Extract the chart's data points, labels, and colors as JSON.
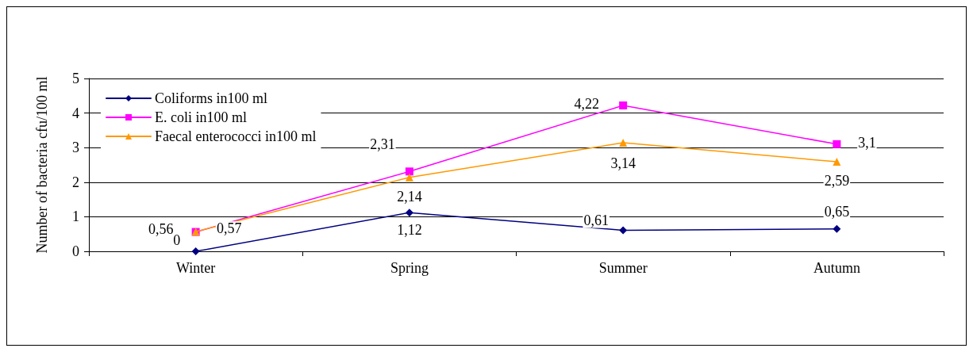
{
  "chart_data": {
    "type": "line",
    "ylabel": "Number of bacteria cfu/100 ml",
    "categories": [
      "Winter",
      "Spring",
      "Summer",
      "Autumn"
    ],
    "series": [
      {
        "name": "Coliforms in100 ml",
        "color": "#000080",
        "marker": "diamond",
        "values": [
          0,
          1.12,
          0.61,
          0.65
        ],
        "value_labels": [
          "0",
          "1,12",
          "0,61",
          "0,65"
        ]
      },
      {
        "name": "E. coli in100 ml",
        "color": "#ff00ff",
        "marker": "square",
        "values": [
          0.56,
          2.31,
          4.22,
          3.1
        ],
        "value_labels": [
          "0,56",
          "2,31",
          "4,22",
          "3,1"
        ]
      },
      {
        "name": "Faecal enterococci in100 ml",
        "color": "#ff9900",
        "marker": "triangle",
        "values": [
          0.57,
          2.14,
          3.14,
          2.59
        ],
        "value_labels": [
          "0,57",
          "2,14",
          "3,14",
          "2,59"
        ]
      }
    ],
    "ylim": [
      0,
      5
    ],
    "yticks": [
      0,
      1,
      2,
      3,
      4,
      5
    ],
    "grid": "y",
    "legend": "top left"
  }
}
